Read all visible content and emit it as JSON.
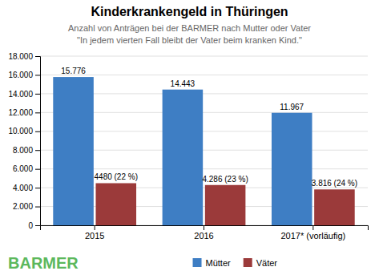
{
  "chart_data": {
    "type": "bar",
    "title": "Kinderkrankengeld in Thüringen",
    "subtitle": "Anzahl von Anträgen bei der BARMER nach Mutter oder Vater",
    "annotations": [
      "\"In jedem vierten Fall bleibt der Vater beim kranken Kind.\"",
      "BARMER"
    ],
    "categories": [
      "2015",
      "2016",
      "2017* (vorläufig)"
    ],
    "series": [
      {
        "name": "Mütter",
        "color": "#3E7EC4",
        "values": [
          15776,
          14443,
          11967
        ],
        "value_labels": [
          "15.776",
          "14.443",
          "11.967"
        ]
      },
      {
        "name": "Väter",
        "color": "#9B3A3A",
        "values": [
          4480,
          4286,
          3816
        ],
        "value_labels": [
          "4480 (22 %)",
          "4.286 (23 %)",
          "3.816 (24 %)"
        ]
      }
    ],
    "ylim": [
      0,
      18000
    ],
    "yticks": [
      0,
      {
        "value": 2000,
        "label": "2.000"
      },
      {
        "value": 4000,
        "label": "4.000"
      },
      {
        "value": 6000,
        "label": "6.000"
      },
      {
        "value": 8000,
        "label": "8.000"
      },
      {
        "value": 10000,
        "label": "10.000"
      },
      {
        "value": 12000,
        "label": "12.000"
      },
      {
        "value": 14000,
        "label": "14.000"
      },
      {
        "value": 16000,
        "label": "16.000"
      },
      {
        "value": 18000,
        "label": "18.000"
      }
    ],
    "grid": true,
    "legend": "bottom",
    "data_labels": true
  }
}
